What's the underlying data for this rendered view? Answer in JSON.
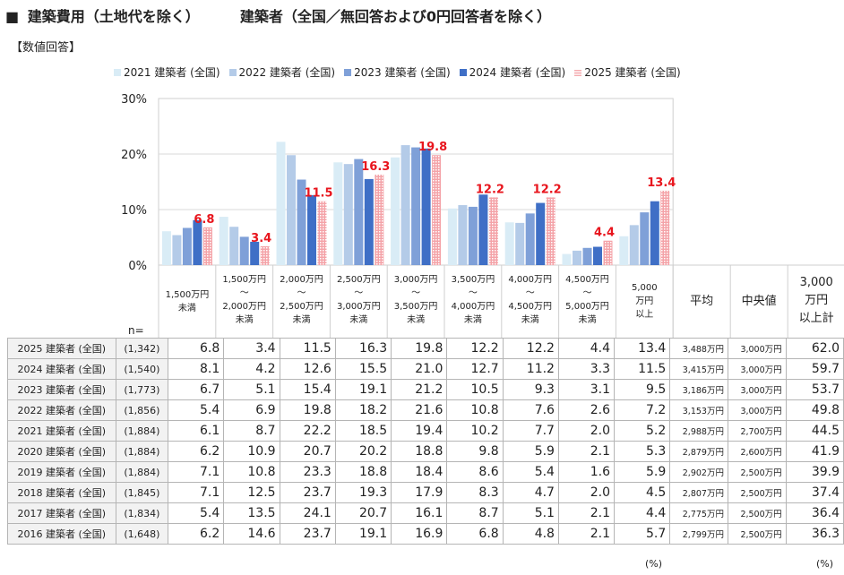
{
  "header": {
    "square": "■",
    "title_left": "建築費用（土地代を除く）",
    "title_right": "建築者（全国／無回答および0円回答者を除く）",
    "subtitle": "【数値回答】"
  },
  "colors": {
    "s2021": "#d9ecf6",
    "s2022": "#b4cbe8",
    "s2023": "#7fa0d8",
    "s2024": "#3f6fc6",
    "s2025": "#f4a3a8",
    "label_red": "#e8151d",
    "gridline": "#d9d9d9"
  },
  "chart_data": {
    "type": "bar",
    "title": "建築費用（土地代を除く）",
    "ylim": [
      0,
      30
    ],
    "yticks": [
      "0%",
      "10%",
      "20%",
      "30%"
    ],
    "categories": [
      "1,500万円未満",
      "1,500万円～2,000万円未満",
      "2,000万円～2,500万円未満",
      "2,500万円～3,000万円未満",
      "3,000万円～3,500万円未満",
      "3,500万円～4,000万円未満",
      "4,000万円～4,500万円未満",
      "4,500万円～5,000万円未満",
      "5,000万円以上"
    ],
    "series": [
      {
        "name": "2021 建築者 (全国)",
        "values": [
          6.1,
          8.7,
          22.2,
          18.5,
          19.4,
          10.2,
          7.7,
          2.0,
          5.2
        ]
      },
      {
        "name": "2022 建築者 (全国)",
        "values": [
          5.4,
          6.9,
          19.8,
          18.2,
          21.6,
          10.8,
          7.6,
          2.6,
          7.2
        ]
      },
      {
        "name": "2023 建築者 (全国)",
        "values": [
          6.7,
          5.1,
          15.4,
          19.1,
          21.2,
          10.5,
          9.3,
          3.1,
          9.5
        ]
      },
      {
        "name": "2024 建築者 (全国)",
        "values": [
          8.1,
          4.2,
          12.6,
          15.5,
          21.0,
          12.7,
          11.2,
          3.3,
          11.5
        ]
      },
      {
        "name": "2025 建築者 (全国)",
        "values": [
          6.8,
          3.4,
          11.5,
          16.3,
          19.8,
          12.2,
          12.2,
          4.4,
          13.4
        ]
      }
    ],
    "data_labels": [
      "6.8",
      "3.4",
      "11.5",
      "16.3",
      "19.8",
      "12.2",
      "12.2",
      "4.4",
      "13.4"
    ]
  },
  "table": {
    "n_label": "n=",
    "col_headers": [
      [
        "1,500万円",
        "未満"
      ],
      [
        "1,500万円",
        "～",
        "2,000万円",
        "未満"
      ],
      [
        "2,000万円",
        "～",
        "2,500万円",
        "未満"
      ],
      [
        "2,500万円",
        "～",
        "3,000万円",
        "未満"
      ],
      [
        "3,000万円",
        "～",
        "3,500万円",
        "未満"
      ],
      [
        "3,500万円",
        "～",
        "4,000万円",
        "未満"
      ],
      [
        "4,000万円",
        "～",
        "4,500万円",
        "未満"
      ],
      [
        "4,500万円",
        "～",
        "5,000万円",
        "未満"
      ],
      [
        "5,000",
        "万円",
        "以上"
      ]
    ],
    "avg_header": "平均",
    "median_header": "中央値",
    "over_header": [
      "3,000",
      "万円",
      "以上計"
    ],
    "rows": [
      {
        "label": "2025 建築者 (全国)",
        "n": "(1,342)",
        "values": [
          "6.8",
          "3.4",
          "11.5",
          "16.3",
          "19.8",
          "12.2",
          "12.2",
          "4.4",
          "13.4"
        ],
        "avg": "3,488万円",
        "median": "3,000万円",
        "over": "62.0"
      },
      {
        "label": "2024 建築者 (全国)",
        "n": "(1,540)",
        "values": [
          "8.1",
          "4.2",
          "12.6",
          "15.5",
          "21.0",
          "12.7",
          "11.2",
          "3.3",
          "11.5"
        ],
        "avg": "3,415万円",
        "median": "3,000万円",
        "over": "59.7"
      },
      {
        "label": "2023 建築者 (全国)",
        "n": "(1,773)",
        "values": [
          "6.7",
          "5.1",
          "15.4",
          "19.1",
          "21.2",
          "10.5",
          "9.3",
          "3.1",
          "9.5"
        ],
        "avg": "3,186万円",
        "median": "3,000万円",
        "over": "53.7"
      },
      {
        "label": "2022 建築者 (全国)",
        "n": "(1,856)",
        "values": [
          "5.4",
          "6.9",
          "19.8",
          "18.2",
          "21.6",
          "10.8",
          "7.6",
          "2.6",
          "7.2"
        ],
        "avg": "3,153万円",
        "median": "3,000万円",
        "over": "49.8"
      },
      {
        "label": "2021 建築者 (全国)",
        "n": "(1,884)",
        "values": [
          "6.1",
          "8.7",
          "22.2",
          "18.5",
          "19.4",
          "10.2",
          "7.7",
          "2.0",
          "5.2"
        ],
        "avg": "2,988万円",
        "median": "2,700万円",
        "over": "44.5"
      },
      {
        "label": "2020 建築者 (全国)",
        "n": "(1,884)",
        "values": [
          "6.2",
          "10.9",
          "20.7",
          "20.2",
          "18.8",
          "9.8",
          "5.9",
          "2.1",
          "5.3"
        ],
        "avg": "2,879万円",
        "median": "2,600万円",
        "over": "41.9"
      },
      {
        "label": "2019 建築者 (全国)",
        "n": "(1,884)",
        "values": [
          "7.1",
          "10.8",
          "23.3",
          "18.8",
          "18.4",
          "8.6",
          "5.4",
          "1.6",
          "5.9"
        ],
        "avg": "2,902万円",
        "median": "2,500万円",
        "over": "39.9"
      },
      {
        "label": "2018 建築者 (全国)",
        "n": "(1,845)",
        "values": [
          "7.1",
          "12.5",
          "23.7",
          "19.3",
          "17.9",
          "8.3",
          "4.7",
          "2.0",
          "4.5"
        ],
        "avg": "2,807万円",
        "median": "2,500万円",
        "over": "37.4"
      },
      {
        "label": "2017 建築者 (全国)",
        "n": "(1,834)",
        "values": [
          "5.4",
          "13.5",
          "24.1",
          "20.7",
          "16.1",
          "8.7",
          "5.1",
          "2.1",
          "4.4"
        ],
        "avg": "2,775万円",
        "median": "2,500万円",
        "over": "36.4"
      },
      {
        "label": "2016 建築者 (全国)",
        "n": "(1,648)",
        "values": [
          "6.2",
          "14.6",
          "23.7",
          "19.1",
          "16.9",
          "6.8",
          "4.8",
          "2.1",
          "5.7"
        ],
        "avg": "2,799万円",
        "median": "2,500万円",
        "over": "36.3"
      }
    ],
    "unit_note_mid": "(%)",
    "unit_note_right": "(%)"
  }
}
